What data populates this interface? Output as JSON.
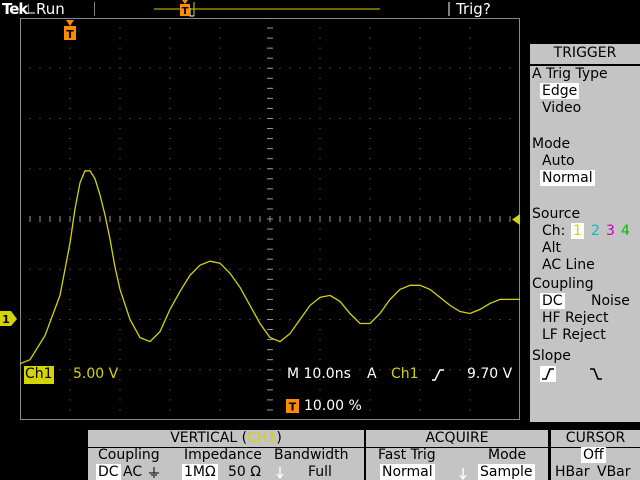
{
  "header": {
    "brand": "Tek",
    "run_state": "Run",
    "trig_state": "Trig?"
  },
  "markers": {
    "trigger_point_glyph": "T",
    "channel_marker": "1"
  },
  "readouts": {
    "ch_label": "Ch1",
    "ch_scale": "5.00 V",
    "timebase": "M 10.0ns",
    "trig_mode_letter": "A",
    "trig_source": "Ch1",
    "trig_slope_glyph": "⮯",
    "trig_level": "9.70 V",
    "trig_position": "10.00 %"
  },
  "trigger_menu": {
    "title": "TRIGGER",
    "trig_type_label": "A Trig Type",
    "trig_type_options": [
      "Edge",
      "Video"
    ],
    "trig_type_selected": "Edge",
    "mode_label": "Mode",
    "mode_options": [
      "Auto",
      "Normal"
    ],
    "mode_selected": "Normal",
    "source_label": "Source",
    "source_ch_prefix": "Ch:",
    "source_channels": [
      "1",
      "2",
      "3",
      "4"
    ],
    "source_selected": "1",
    "source_extra": [
      "Alt",
      "AC Line"
    ],
    "coupling_label": "Coupling",
    "coupling_options": [
      "DC",
      "Noise",
      "HF Reject",
      "LF Reject"
    ],
    "coupling_selected": "DC",
    "slope_label": "Slope"
  },
  "bottom_menu": {
    "vertical": {
      "title": "VERTICAL",
      "channel": "CH1",
      "coupling_label": "Coupling",
      "coupling_dc": "DC",
      "coupling_ac": "AC",
      "impedance_label": "Impedance",
      "impedance_1m": "1MΩ",
      "impedance_50": "50 Ω",
      "bandwidth_label": "Bandwidth",
      "bandwidth_value": "Full"
    },
    "acquire": {
      "title": "ACQUIRE",
      "fast_trig_label": "Fast Trig",
      "fast_trig_value": "Normal",
      "mode_label": "Mode",
      "mode_value": "Sample"
    },
    "cursor": {
      "title": "CURSOR",
      "state": "Off",
      "hbar": "HBar",
      "vbar": "VBar"
    }
  },
  "colors": {
    "ch1": "#d4d400",
    "ch2": "#00c0c0",
    "ch3": "#c000c0",
    "ch4": "#00c000",
    "trigger_marker": "#ff8c00",
    "grid": "#888888",
    "menu_bg": "#c4c4c4"
  },
  "waveform": {
    "channel": "CH1",
    "samples": [
      [
        0,
        -0.72
      ],
      [
        2,
        -0.7
      ],
      [
        5,
        -0.58
      ],
      [
        8,
        -0.38
      ],
      [
        10,
        -0.12
      ],
      [
        11,
        0.05
      ],
      [
        12,
        0.18
      ],
      [
        13,
        0.24
      ],
      [
        14,
        0.24
      ],
      [
        15,
        0.2
      ],
      [
        16,
        0.12
      ],
      [
        17,
        0.02
      ],
      [
        18,
        -0.1
      ],
      [
        19,
        -0.24
      ],
      [
        20,
        -0.35
      ],
      [
        22,
        -0.5
      ],
      [
        24,
        -0.59
      ],
      [
        26,
        -0.61
      ],
      [
        28,
        -0.56
      ],
      [
        30,
        -0.45
      ],
      [
        32,
        -0.36
      ],
      [
        34,
        -0.28
      ],
      [
        36,
        -0.23
      ],
      [
        38,
        -0.21
      ],
      [
        40,
        -0.22
      ],
      [
        42,
        -0.27
      ],
      [
        44,
        -0.34
      ],
      [
        46,
        -0.43
      ],
      [
        48,
        -0.52
      ],
      [
        50,
        -0.59
      ],
      [
        52,
        -0.61
      ],
      [
        54,
        -0.57
      ],
      [
        56,
        -0.5
      ],
      [
        58,
        -0.43
      ],
      [
        60,
        -0.39
      ],
      [
        62,
        -0.38
      ],
      [
        64,
        -0.41
      ],
      [
        66,
        -0.47
      ],
      [
        68,
        -0.52
      ],
      [
        70,
        -0.52
      ],
      [
        72,
        -0.47
      ],
      [
        74,
        -0.4
      ],
      [
        76,
        -0.35
      ],
      [
        78,
        -0.33
      ],
      [
        80,
        -0.33
      ],
      [
        82,
        -0.35
      ],
      [
        84,
        -0.39
      ],
      [
        86,
        -0.43
      ],
      [
        88,
        -0.46
      ],
      [
        90,
        -0.47
      ],
      [
        92,
        -0.45
      ],
      [
        94,
        -0.42
      ],
      [
        96,
        -0.4
      ],
      [
        98,
        -0.4
      ],
      [
        100,
        -0.4
      ]
    ]
  }
}
